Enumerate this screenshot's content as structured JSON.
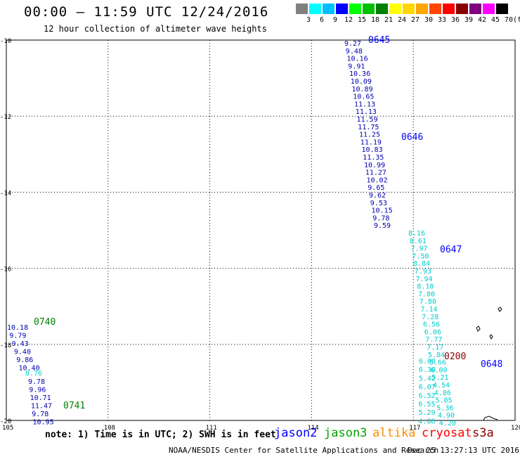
{
  "header": {
    "title": "00:00 – 11:59 UTC 12/24/2016",
    "subtitle": "12 hour collection of altimeter wave heights"
  },
  "colorbar": {
    "unit": "(ft)",
    "ticks": [
      "3",
      "6",
      "9",
      "12",
      "15",
      "18",
      "21",
      "24",
      "27",
      "30",
      "33",
      "36",
      "39",
      "42",
      "45",
      "70"
    ],
    "colors": [
      "#808080",
      "#00ffff",
      "#00bfff",
      "#0000ff",
      "#00ff00",
      "#00c000",
      "#008000",
      "#ffff00",
      "#ffd700",
      "#ffa500",
      "#ff4500",
      "#ff0000",
      "#8b0000",
      "#800080",
      "#ff00ff",
      "#000000"
    ]
  },
  "map": {
    "lon_ticks": [
      "105",
      "108",
      "111",
      "114",
      "117",
      "120"
    ],
    "lat_ticks": [
      "10",
      "12",
      "14",
      "16",
      "18",
      "20"
    ],
    "lon_range": [
      105,
      120
    ],
    "lat_range": [
      10,
      20
    ]
  },
  "tracks": [
    {
      "satellite": "jason2",
      "color": "#0000b0",
      "x0": 9.27,
      "y0": 502,
      "dx": 0.6,
      "row": 10.8,
      "labels": [
        "9.27",
        "9.48",
        "10.16",
        "9.91",
        "10.36",
        "10.09",
        "10.89",
        "10.65",
        "11.13",
        "11.13",
        "11.59",
        "11.75",
        "11.25",
        "11.19",
        "10.83",
        "11.35",
        "10.99",
        "11.27",
        "10.02",
        "9.65",
        "9.62",
        "9.53",
        "10.15",
        "9.78",
        "9.59"
      ]
    },
    {
      "satellite": "jason2",
      "color": "#00cccc",
      "labels": [
        "8.16",
        "8.61",
        "7.97",
        "7.50",
        "8.84",
        "7.93",
        "7.94",
        "8.18",
        "7.80",
        "7.80",
        "7.14",
        "7.28",
        "6.56",
        "6.06",
        "7.77",
        "7.17",
        "5.84",
        "5.66",
        "6.00",
        "5.21",
        "4.54",
        "4.86",
        "5.05",
        "5.36",
        "4.90",
        "4.20"
      ]
    },
    {
      "satellite": "jason2",
      "color": "#00cccc",
      "labels": [
        "6.00",
        "6.30",
        "5.42",
        "6.07",
        "6.52",
        "6.55",
        "5.29",
        "4.86"
      ]
    },
    {
      "satellite": "jason3",
      "color": "#0000b0",
      "labels": [
        "10.18",
        "9.79",
        "9.43",
        "9.40",
        "9.86",
        "10.40"
      ]
    },
    {
      "satellite": "jason3",
      "color": "#00cccc",
      "labels": [
        "8.76"
      ]
    },
    {
      "satellite": "jason3",
      "color": "#0000b0",
      "labels": [
        "9.78",
        "9.96",
        "10.71",
        "11.47",
        "9.78",
        "10.95"
      ]
    }
  ],
  "times": [
    {
      "label": "0645",
      "color": "#0000ff"
    },
    {
      "label": "0646",
      "color": "#0000ff"
    },
    {
      "label": "0647",
      "color": "#0000ff"
    },
    {
      "label": "0648",
      "color": "#0000ff"
    },
    {
      "label": "0740",
      "color": "#008000"
    },
    {
      "label": "0741",
      "color": "#008000"
    },
    {
      "label": "0200",
      "color": "#8b0000"
    }
  ],
  "footer": {
    "note": "note: 1) Time is in UTC; 2) SWH is in feet",
    "satellites": [
      {
        "name": "jason2",
        "color": "#0000ff"
      },
      {
        "name": "jason3",
        "color": "#00a000"
      },
      {
        "name": "altika",
        "color": "#ff8c00"
      },
      {
        "name": "cryosat",
        "color": "#ff0000"
      },
      {
        "name": "s3a",
        "color": "#8b0000"
      }
    ],
    "credit": "NOAA/NESDIS Center for Satellite Applications and Research",
    "timestamp": "Dec 25 13:27:13 UTC 2016"
  }
}
